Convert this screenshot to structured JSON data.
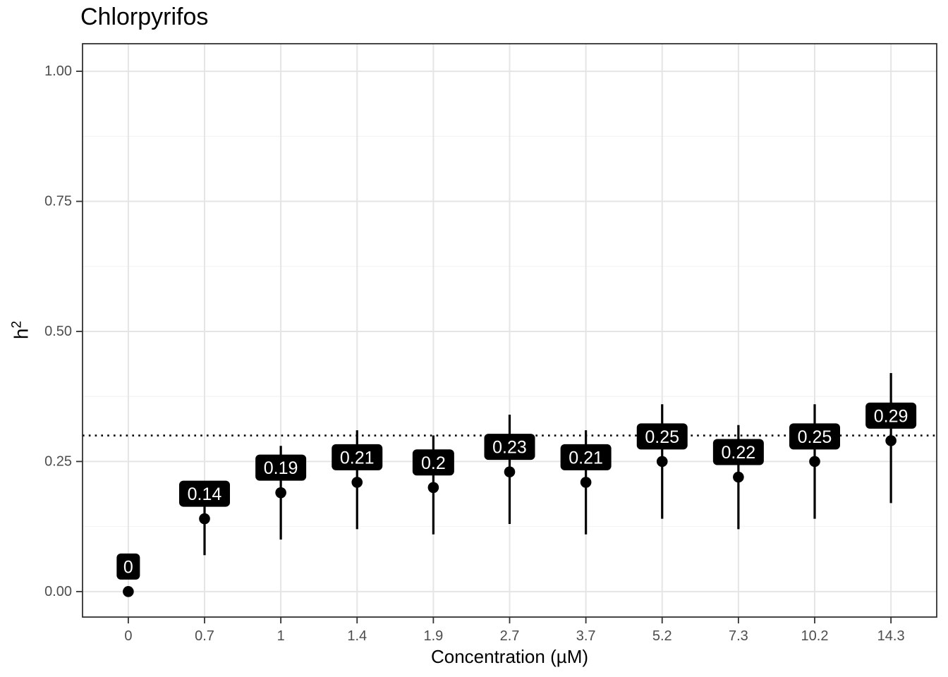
{
  "chart_data": {
    "type": "pointrange",
    "title": "Chlorpyrifos",
    "xlabel": "Concentration (µM)",
    "ylabel": {
      "base": "h",
      "sup": "2"
    },
    "x_categories": [
      "0",
      "0.7",
      "1",
      "1.4",
      "1.9",
      "2.7",
      "3.7",
      "5.2",
      "7.3",
      "10.2",
      "14.3"
    ],
    "y_ticks": [
      {
        "label": "0.00",
        "value": 0.0
      },
      {
        "label": "0.25",
        "value": 0.25
      },
      {
        "label": "0.50",
        "value": 0.5
      },
      {
        "label": "0.75",
        "value": 0.75
      },
      {
        "label": "1.00",
        "value": 1.0
      }
    ],
    "y_minor_ticks": [
      0.125,
      0.375,
      0.625,
      0.875
    ],
    "ylim": [
      -0.049,
      1.053
    ],
    "grid": true,
    "legend": "none",
    "reference_line": {
      "value": 0.3,
      "style": "dotted"
    },
    "points": [
      {
        "x": "0",
        "y": 0.0,
        "lower": 0.0,
        "upper": 0.0,
        "label": "0"
      },
      {
        "x": "0.7",
        "y": 0.14,
        "lower": 0.07,
        "upper": 0.21,
        "label": "0.14"
      },
      {
        "x": "1",
        "y": 0.19,
        "lower": 0.1,
        "upper": 0.28,
        "label": "0.19"
      },
      {
        "x": "1.4",
        "y": 0.21,
        "lower": 0.12,
        "upper": 0.31,
        "label": "0.21"
      },
      {
        "x": "1.9",
        "y": 0.2,
        "lower": 0.11,
        "upper": 0.3,
        "label": "0.2"
      },
      {
        "x": "2.7",
        "y": 0.23,
        "lower": 0.13,
        "upper": 0.34,
        "label": "0.23"
      },
      {
        "x": "3.7",
        "y": 0.21,
        "lower": 0.11,
        "upper": 0.31,
        "label": "0.21"
      },
      {
        "x": "5.2",
        "y": 0.25,
        "lower": 0.14,
        "upper": 0.36,
        "label": "0.25"
      },
      {
        "x": "7.3",
        "y": 0.22,
        "lower": 0.12,
        "upper": 0.32,
        "label": "0.22"
      },
      {
        "x": "10.2",
        "y": 0.25,
        "lower": 0.14,
        "upper": 0.36,
        "label": "0.25"
      },
      {
        "x": "14.3",
        "y": 0.29,
        "lower": 0.17,
        "upper": 0.42,
        "label": "0.29"
      }
    ],
    "colors": {
      "point": "#000000",
      "error_bar": "#000000",
      "label_bg": "#000000",
      "label_text": "#ffffff",
      "grid_major": "#e5e5e5",
      "grid_minor": "#f2f2f2",
      "panel_border": "#262626",
      "tick_mark": "#333333",
      "tick_text": "#4d4d4d",
      "reference_line": "#000000",
      "background": "#ffffff"
    }
  }
}
